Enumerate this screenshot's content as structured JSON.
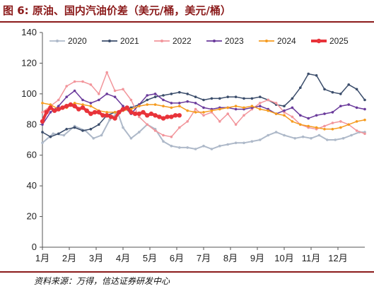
{
  "title": "图 6:  原油、国内汽油价差（美元/桶，美元/桶）",
  "source": "资料来源：万得，信达证券研发中心",
  "chart_data": {
    "type": "line",
    "x_labels": [
      "1月",
      "2月",
      "3月",
      "4月",
      "5月",
      "6月",
      "7月",
      "8月",
      "9月",
      "10月",
      "11月",
      "12月"
    ],
    "x_range": [
      1,
      13
    ],
    "ylim": [
      0,
      140
    ],
    "yticks": [
      0,
      20,
      40,
      60,
      80,
      100,
      120,
      140
    ],
    "grid": false,
    "legend_position": "top",
    "series": [
      {
        "name": "2020",
        "color": "#aeb9c9",
        "width": 2,
        "marker": "dot",
        "x": [
          1.0,
          1.4,
          1.8,
          2.2,
          2.6,
          2.9,
          3.2,
          3.5,
          3.8,
          4.0,
          4.3,
          4.6,
          4.9,
          5.2,
          5.5,
          5.8,
          6.1,
          6.4,
          6.7,
          7.0,
          7.3,
          7.6,
          7.9,
          8.2,
          8.5,
          8.8,
          9.1,
          9.4,
          9.7,
          10.0,
          10.4,
          10.7,
          11.0,
          11.3,
          11.6,
          11.9,
          12.2,
          12.5,
          12.8,
          13.0
        ],
        "y": [
          68,
          74,
          73,
          79,
          76,
          71,
          73,
          83,
          88,
          78,
          71,
          75,
          80,
          77,
          69,
          66,
          65,
          65,
          64,
          66,
          64,
          66,
          67,
          68,
          68,
          69,
          70,
          73,
          75,
          73,
          71,
          72,
          71,
          73,
          70,
          70,
          71,
          73,
          75,
          75
        ]
      },
      {
        "name": "2021",
        "color": "#3b4d6b",
        "width": 1.5,
        "marker": "dot",
        "x": [
          1.0,
          1.3,
          1.6,
          1.9,
          2.2,
          2.5,
          2.8,
          3.1,
          3.4,
          3.7,
          4.0,
          4.3,
          4.6,
          4.9,
          5.2,
          5.5,
          5.8,
          6.1,
          6.4,
          6.7,
          7.0,
          7.3,
          7.6,
          7.9,
          8.2,
          8.5,
          8.8,
          9.1,
          9.4,
          9.7,
          10.0,
          10.3,
          10.6,
          10.9,
          11.2,
          11.5,
          11.8,
          12.1,
          12.4,
          12.7,
          13.0
        ],
        "y": [
          75,
          72,
          74,
          77,
          78,
          76,
          77,
          80,
          86,
          88,
          89,
          91,
          93,
          96,
          98,
          99,
          100,
          101,
          100,
          98,
          96,
          97,
          97,
          98,
          98,
          97,
          97,
          98,
          96,
          93,
          92,
          97,
          104,
          113,
          112,
          103,
          101,
          100,
          106,
          103,
          96
        ]
      },
      {
        "name": "2022",
        "color": "#f2959b",
        "width": 1.5,
        "marker": "dot",
        "x": [
          1.0,
          1.3,
          1.6,
          1.9,
          2.2,
          2.5,
          2.8,
          3.1,
          3.4,
          3.7,
          4.0,
          4.3,
          4.6,
          4.9,
          5.2,
          5.5,
          5.8,
          6.1,
          6.4,
          6.7,
          7.0,
          7.3,
          7.6,
          7.9,
          8.2,
          8.5,
          8.8,
          9.1,
          9.4,
          9.7,
          10.0,
          10.3,
          10.6,
          10.9,
          11.2,
          11.5,
          11.8,
          12.1,
          12.4,
          12.7,
          13.0
        ],
        "y": [
          88,
          92,
          96,
          105,
          108,
          108,
          106,
          100,
          114,
          102,
          103,
          96,
          85,
          80,
          76,
          73,
          72,
          78,
          82,
          90,
          86,
          88,
          82,
          87,
          80,
          86,
          90,
          94,
          96,
          94,
          88,
          85,
          80,
          78,
          77,
          79,
          81,
          82,
          80,
          76,
          74
        ]
      },
      {
        "name": "2023",
        "color": "#6a3a9b",
        "width": 1.5,
        "marker": "dot",
        "x": [
          1.0,
          1.3,
          1.6,
          1.9,
          2.2,
          2.5,
          2.8,
          3.1,
          3.4,
          3.7,
          4.0,
          4.3,
          4.6,
          4.9,
          5.2,
          5.5,
          5.8,
          6.1,
          6.4,
          6.7,
          7.0,
          7.3,
          7.6,
          7.9,
          8.2,
          8.5,
          8.8,
          9.1,
          9.4,
          9.7,
          10.0,
          10.3,
          10.6,
          10.9,
          11.2,
          11.5,
          11.8,
          12.1,
          12.4,
          12.7,
          13.0
        ],
        "y": [
          80,
          88,
          92,
          98,
          102,
          96,
          94,
          96,
          100,
          98,
          92,
          87,
          93,
          99,
          100,
          96,
          94,
          94,
          95,
          94,
          91,
          90,
          91,
          91,
          90,
          90,
          91,
          92,
          90,
          87,
          89,
          91,
          86,
          84,
          86,
          87,
          88,
          92,
          93,
          91,
          90
        ]
      },
      {
        "name": "2024",
        "color": "#f59b1f",
        "width": 1.5,
        "marker": "dot",
        "x": [
          1.0,
          1.3,
          1.6,
          1.9,
          2.2,
          2.5,
          2.8,
          3.1,
          3.4,
          3.7,
          4.0,
          4.3,
          4.6,
          4.9,
          5.2,
          5.5,
          5.8,
          6.1,
          6.4,
          6.7,
          7.0,
          7.3,
          7.6,
          7.9,
          8.2,
          8.5,
          8.8,
          9.1,
          9.4,
          9.7,
          10.0,
          10.3,
          10.6,
          10.9,
          11.2,
          11.5,
          11.8,
          12.1,
          12.4,
          12.7,
          13.0
        ],
        "y": [
          94,
          93,
          90,
          91,
          94,
          93,
          92,
          89,
          88,
          88,
          89,
          90,
          92,
          93,
          93,
          92,
          91,
          92,
          89,
          88,
          88,
          89,
          90,
          91,
          92,
          91,
          92,
          90,
          89,
          87,
          86,
          82,
          80,
          79,
          78,
          77,
          77,
          78,
          80,
          82,
          83
        ]
      },
      {
        "name": "2025",
        "color": "#e8333a",
        "width": 4,
        "marker": "dot",
        "x": [
          1.0,
          1.15,
          1.3,
          1.45,
          1.6,
          1.75,
          1.9,
          2.05,
          2.2,
          2.35,
          2.5,
          2.65,
          2.8,
          2.95,
          3.1,
          3.25,
          3.4,
          3.55,
          3.7,
          3.85,
          4.0,
          4.15,
          4.3,
          4.45,
          4.6,
          4.75,
          4.9,
          5.05,
          5.2,
          5.35,
          5.5,
          5.65,
          5.8,
          5.95,
          6.1
        ],
        "y": [
          82,
          88,
          91,
          89,
          90,
          91,
          92,
          93,
          92,
          90,
          91,
          89,
          87,
          88,
          88,
          86,
          86,
          85,
          84,
          88,
          90,
          91,
          88,
          87,
          87,
          88,
          86,
          87,
          86,
          85,
          84,
          85,
          85,
          86,
          86
        ]
      }
    ]
  }
}
